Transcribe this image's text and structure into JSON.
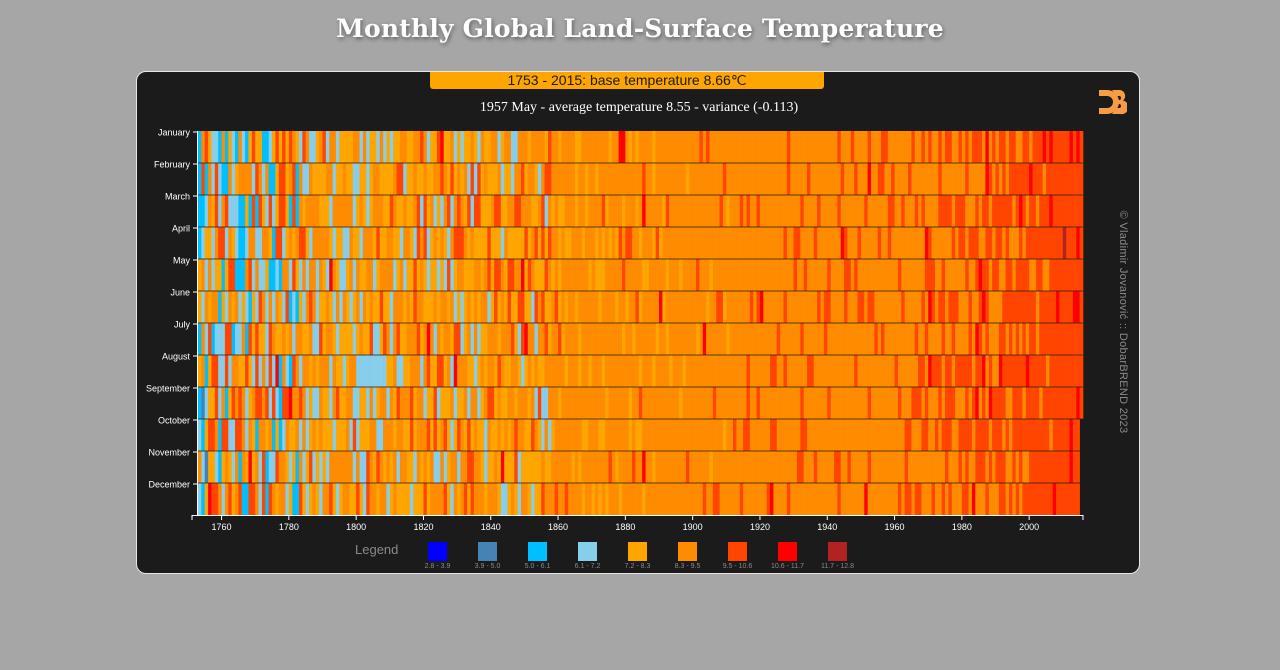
{
  "page": {
    "title": "Monthly Global Land-Surface Temperature"
  },
  "card": {
    "base_info": "1753 - 2015: base temperature 8.66℃",
    "hover_info": "1957 May - average temperature 8.55 - variance (-0.113)",
    "logo": "d3-logo-icon",
    "credit": "© Vladimir Jovanović :: DobarBREND 2023"
  },
  "chart_data": {
    "type": "heatmap",
    "title": "Monthly Global Land-Surface Temperature",
    "subtitle": "1753 - 2015: base temperature 8.66℃",
    "base_temperature": 8.66,
    "x_range": [
      1753,
      2015
    ],
    "x_ticks": [
      1760,
      1780,
      1800,
      1820,
      1840,
      1860,
      1880,
      1900,
      1920,
      1940,
      1960,
      1980,
      2000
    ],
    "months": [
      "January",
      "February",
      "March",
      "April",
      "May",
      "June",
      "July",
      "August",
      "September",
      "October",
      "November",
      "December"
    ],
    "last_month_index_2015": 8,
    "legend_title": "Legend",
    "legend": [
      {
        "range": "2.8 - 3.9",
        "color": "#0000ff"
      },
      {
        "range": "3.9 - 5.0",
        "color": "#4682b4"
      },
      {
        "range": "5.0 - 6.1",
        "color": "#00bfff"
      },
      {
        "range": "6.1 - 7.2",
        "color": "#87ceeb"
      },
      {
        "range": "7.2 - 8.3",
        "color": "#ffa500"
      },
      {
        "range": "8.3 - 9.5",
        "color": "#ff8c00"
      },
      {
        "range": "9.5 - 10.6",
        "color": "#ff4500"
      },
      {
        "range": "10.6 - 11.7",
        "color": "#ff0000"
      },
      {
        "range": "11.7 - 12.8",
        "color": "#b22222"
      }
    ],
    "selected": {
      "year": 1957,
      "month": "May",
      "temperature": 8.55,
      "variance": -0.113
    }
  }
}
